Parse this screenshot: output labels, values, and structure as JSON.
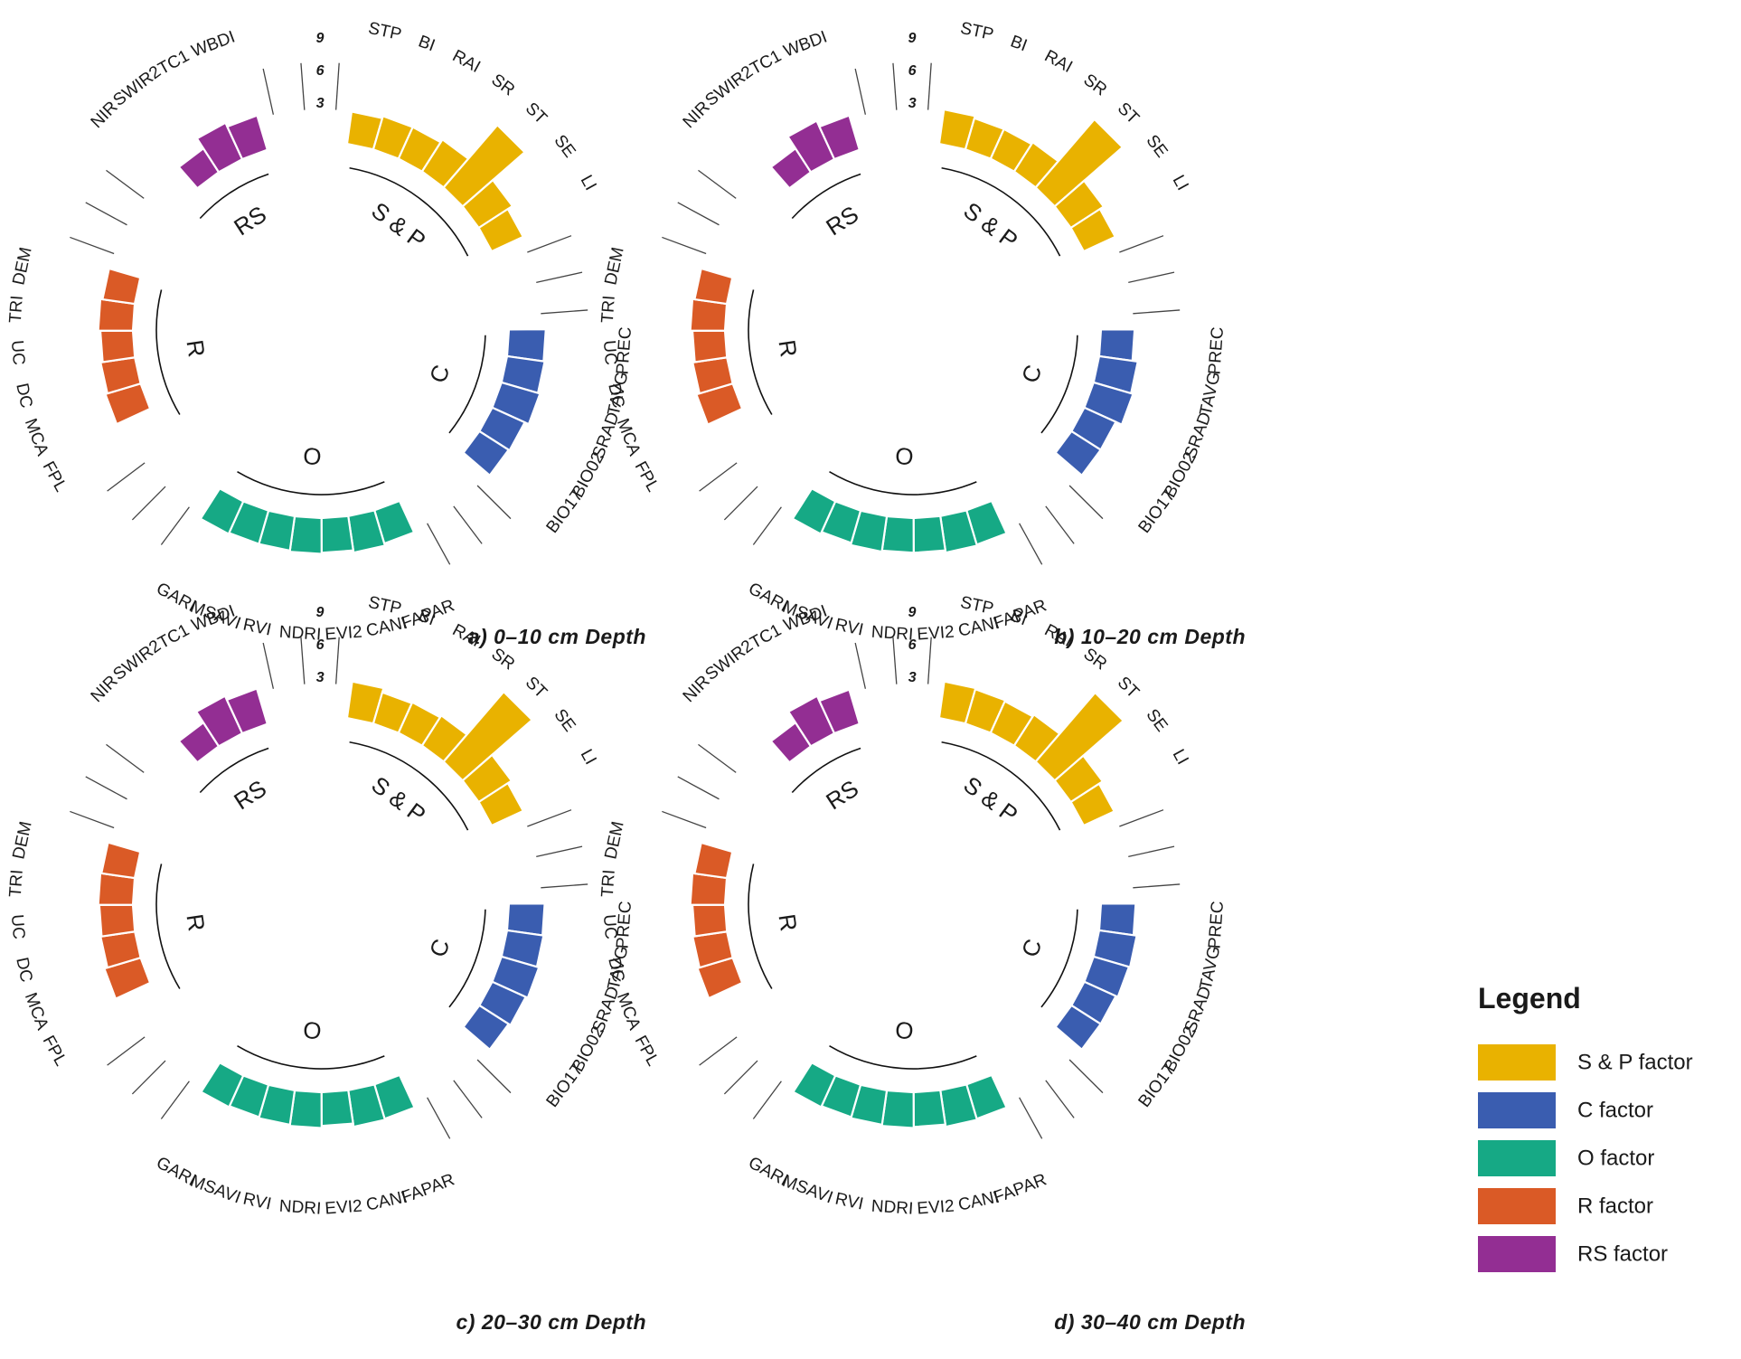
{
  "colors": {
    "S & P": "#E9B200",
    "C": "#3A5DB0",
    "O": "#16A985",
    "R": "#DA5A26",
    "RS": "#932E93"
  },
  "legend": {
    "title": "Legend",
    "items": [
      {
        "group": "S & P",
        "label": "S & P factor"
      },
      {
        "group": "C",
        "label": "C factor"
      },
      {
        "group": "O",
        "label": "O factor"
      },
      {
        "group": "R",
        "label": "R factor"
      },
      {
        "group": "RS",
        "label": "RS factor"
      }
    ]
  },
  "chart_data": {
    "type": "circular-bar",
    "radial_ticks": [
      "3",
      "6",
      "9"
    ],
    "group_order": [
      "S & P",
      "C",
      "O",
      "R",
      "RS"
    ],
    "groups": [
      {
        "name": "S & P",
        "variables": [
          "STP",
          "BI",
          "RAI",
          "SR",
          "ST",
          "SE",
          "LI"
        ]
      },
      {
        "name": "C",
        "variables": [
          "PREC",
          "TAVG",
          "SRAD",
          "BIO02",
          "BIO17"
        ]
      },
      {
        "name": "O",
        "variables": [
          "FAPAR",
          "CANI",
          "EVI2",
          "NDRI",
          "RVI",
          "MSAVI",
          "GARI"
        ]
      },
      {
        "name": "R",
        "variables": [
          "FPL",
          "MCA",
          "DC",
          "UC",
          "TRI",
          "DEM"
        ]
      },
      {
        "name": "RS",
        "variables": [
          "NIR",
          "SWIR2",
          "TC1",
          "WBDI"
        ]
      }
    ],
    "panels": [
      {
        "title": "a) 0–10 cm Depth",
        "values": {
          "S & P": [
            3.0,
            3.2,
            3.2,
            3.5,
            7.6,
            3.7,
            3.2
          ],
          "C": [
            3.4,
            3.5,
            3.7,
            3.3,
            3.2
          ],
          "O": [
            3.2,
            3.4,
            3.2,
            3.3,
            3.2,
            3.2,
            3.3
          ],
          "R": [
            0,
            3.4,
            3.2,
            3.0,
            3.2,
            3.0
          ],
          "RS": [
            0,
            2.6,
            3.7,
            3.3
          ]
        }
      },
      {
        "title": "b) 10–20 cm Depth",
        "values": {
          "S & P": [
            3.2,
            3.0,
            3.0,
            3.2,
            8.3,
            3.6,
            3.2
          ],
          "C": [
            3.1,
            3.6,
            3.8,
            3.2,
            3.2
          ],
          "O": [
            3.3,
            3.4,
            3.2,
            3.2,
            3.3,
            3.1,
            3.3
          ],
          "R": [
            0,
            3.5,
            3.2,
            3.0,
            3.2,
            3.0
          ],
          "RS": [
            0,
            2.6,
            3.9,
            3.3
          ]
        }
      },
      {
        "title": "c) 20–30 cm Depth",
        "values": {
          "S & P": [
            3.4,
            3.0,
            3.1,
            3.3,
            8.5,
            3.6,
            3.2
          ],
          "C": [
            3.3,
            3.4,
            3.6,
            3.4,
            3.2
          ],
          "O": [
            3.3,
            3.4,
            3.1,
            3.3,
            3.2,
            3.1,
            3.2
          ],
          "R": [
            0,
            3.5,
            3.2,
            3.1,
            3.2,
            3.1
          ],
          "RS": [
            0,
            2.6,
            3.8,
            3.4
          ]
        }
      },
      {
        "title": "d) 30–40 cm Depth",
        "values": {
          "S & P": [
            3.4,
            3.3,
            3.2,
            3.4,
            8.4,
            3.5,
            3.1
          ],
          "C": [
            3.2,
            3.5,
            3.4,
            3.2,
            3.2
          ],
          "O": [
            3.3,
            3.4,
            3.2,
            3.3,
            3.2,
            3.1,
            3.2
          ],
          "R": [
            0,
            3.4,
            3.2,
            3.0,
            3.2,
            3.0
          ],
          "RS": [
            0,
            2.6,
            3.8,
            3.3
          ]
        }
      }
    ]
  }
}
